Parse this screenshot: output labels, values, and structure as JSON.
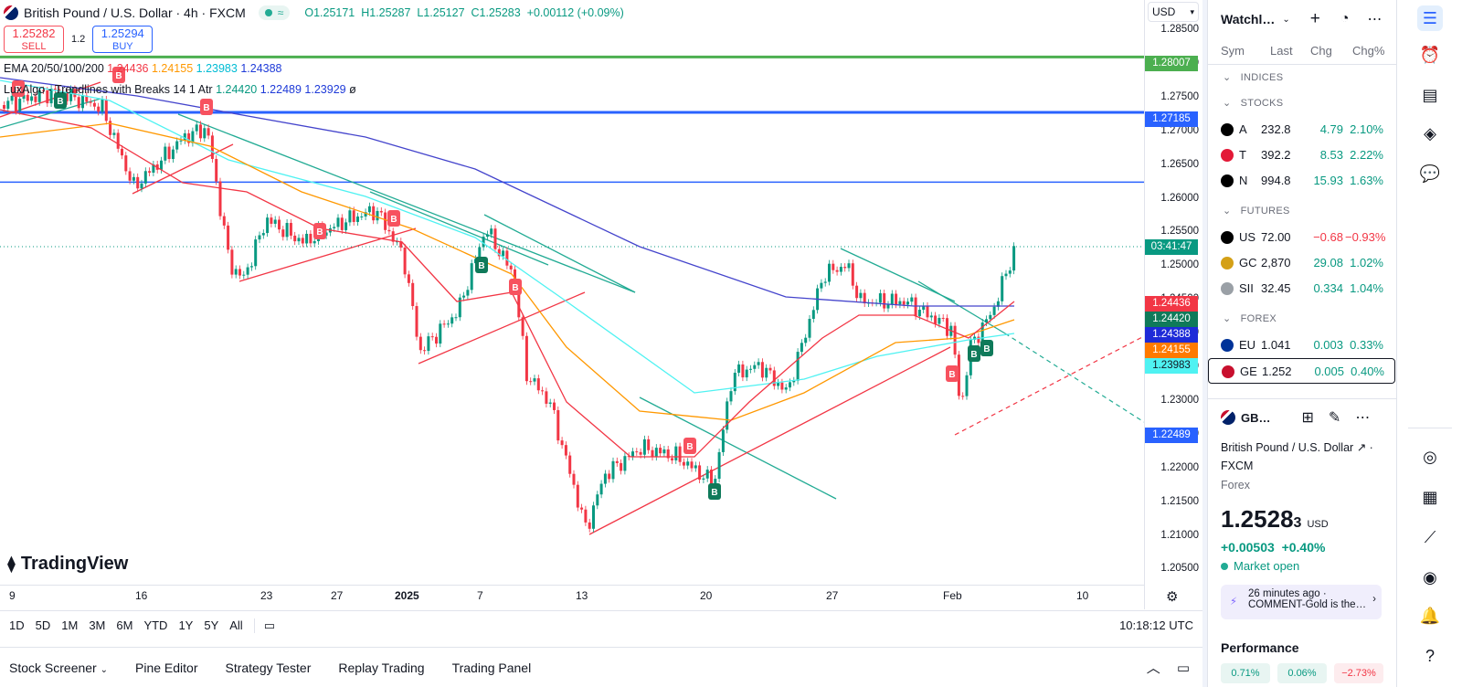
{
  "header": {
    "symbol_title": "British Pound / U.S. Dollar · 4h · FXCM",
    "ohlc": {
      "o": "O1.25171",
      "h": "H1.25287",
      "l": "L1.25127",
      "c": "C1.25283",
      "chg": "+0.00112 (+0.09%)"
    },
    "sell_price": "1.25282",
    "sell_label": "SELL",
    "spread": "1.2",
    "buy_price": "1.25294",
    "buy_label": "BUY",
    "currency": "USD"
  },
  "indicators": {
    "ema_label": "EMA 20/50/100/200",
    "ema_values": [
      "1.24436",
      "1.24155",
      "1.23983",
      "1.24388"
    ],
    "lux_label": "LuxAlgo - Trendlines with Breaks 14 1 Atr",
    "lux_values": [
      "1.24420",
      "1.22489",
      "1.23929",
      "ø"
    ]
  },
  "price_scale": {
    "ticks": [
      "1.28500",
      "1.28000",
      "1.27500",
      "1.27000",
      "1.26500",
      "1.26000",
      "1.25500",
      "1.25000",
      "1.24500",
      "1.24000",
      "1.23500",
      "1.23000",
      "1.22500",
      "1.22000",
      "1.21500",
      "1.21000",
      "1.20500"
    ],
    "labels": {
      "green_line": "1.28007",
      "blue_line": "1.27185",
      "countdown": "03:41:47",
      "ema20": "1.24436",
      "lux": "1.24420",
      "ema200": "1.24388",
      "ema50": "1.24155",
      "ema100": "1.23983",
      "lux2": "1.22489"
    },
    "colors": {
      "green": "#4caf50",
      "blue": "#2962ff",
      "red": "#f23645",
      "teal": "#089981",
      "orange": "#ff9800",
      "cyan": "#4ff2f2"
    }
  },
  "time_axis": {
    "ticks": [
      "9",
      "16",
      "23",
      "27",
      "2025",
      "7",
      "13",
      "20",
      "27",
      "Feb",
      "10"
    ]
  },
  "ranges": {
    "items": [
      "1D",
      "5D",
      "1M",
      "3M",
      "6M",
      "YTD",
      "1Y",
      "5Y",
      "All"
    ],
    "clock": "10:18:12 UTC"
  },
  "bottom_tabs": [
    "Stock Screener",
    "Pine Editor",
    "Strategy Tester",
    "Replay Trading",
    "Trading Panel"
  ],
  "brand": "TradingView",
  "watchlist": {
    "title": "Watchl…",
    "columns": [
      "Sym",
      "Last",
      "Chg",
      "Chg%"
    ],
    "sections": [
      {
        "name": "INDICES",
        "rows": []
      },
      {
        "name": "STOCKS",
        "rows": [
          {
            "sym": "A",
            "last": "232.8",
            "chg": "4.79",
            "pct": "2.10%",
            "dir": "pos",
            "icon": "#000"
          },
          {
            "sym": "T",
            "last": "392.2",
            "chg": "8.53",
            "pct": "2.22%",
            "dir": "pos",
            "icon": "#e31937"
          },
          {
            "sym": "N",
            "last": "994.8",
            "chg": "15.93",
            "pct": "1.63%",
            "dir": "pos",
            "icon": "#000"
          }
        ]
      },
      {
        "name": "FUTURES",
        "rows": [
          {
            "sym": "US",
            "last": "72.00",
            "chg": "−0.68",
            "pct": "−0.93%",
            "dir": "neg",
            "icon": "#000"
          },
          {
            "sym": "GC",
            "last": "2,870",
            "chg": "29.08",
            "pct": "1.02%",
            "dir": "pos",
            "icon": "#d4a017"
          },
          {
            "sym": "SII",
            "last": "32.45",
            "chg": "0.334",
            "pct": "1.04%",
            "dir": "pos",
            "icon": "#9aa0a6"
          }
        ]
      },
      {
        "name": "FOREX",
        "rows": [
          {
            "sym": "EU",
            "last": "1.041",
            "chg": "0.003",
            "pct": "0.33%",
            "dir": "pos",
            "icon": "#003399"
          },
          {
            "sym": "GE",
            "last": "1.252",
            "chg": "0.005",
            "pct": "0.40%",
            "dir": "pos",
            "icon": "#c8102e"
          }
        ]
      }
    ]
  },
  "details": {
    "short": "GB…",
    "name": "British Pound / U.S. Dollar",
    "exchange": "FXCM",
    "type": "Forex",
    "price_main": "1.2528",
    "price_sup": "3",
    "currency": "USD",
    "change": "+0.00503",
    "change_pct": "+0.40%",
    "status": "Market open",
    "news_time": "26 minutes ago",
    "news_text": "COMMENT-Gold is the…",
    "performance": "Performance",
    "perf_values": [
      "0.71%",
      "0.06%",
      "−2.73%"
    ]
  }
}
